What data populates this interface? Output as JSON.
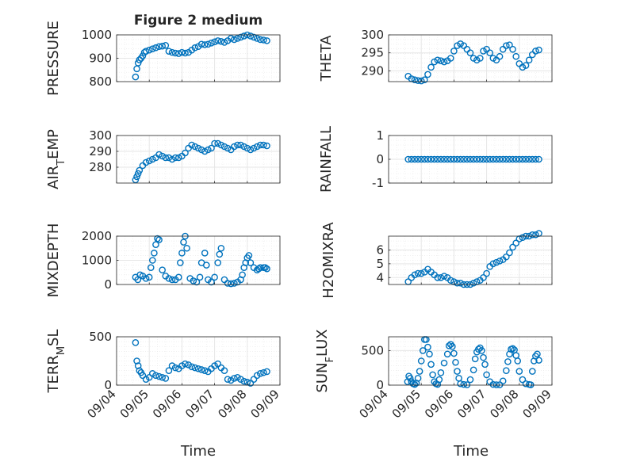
{
  "figure": {
    "title": "Figure 2 medium",
    "xlabel": "Time",
    "x_tick_labels": [
      "09/04",
      "09/05",
      "09/06",
      "09/07",
      "09/08",
      "09/09"
    ],
    "colors": {
      "marker": "#0072BD",
      "grid": "#e6e6e6",
      "axis": "#262626"
    }
  },
  "chart_data": [
    {
      "type": "scatter",
      "ylabel": "PRESSURE",
      "xlim": [
        0,
        5
      ],
      "ylim": [
        800,
        1000
      ],
      "yticks": [
        800,
        900,
        1000
      ],
      "x_tick_labels_shown": false,
      "grid": true,
      "x": [
        0.58,
        0.62,
        0.66,
        0.7,
        0.75,
        0.8,
        0.85,
        0.9,
        1.0,
        1.1,
        1.2,
        1.3,
        1.4,
        1.5,
        1.6,
        1.7,
        1.8,
        1.9,
        2.0,
        2.1,
        2.2,
        2.3,
        2.4,
        2.5,
        2.6,
        2.7,
        2.8,
        2.9,
        3.0,
        3.1,
        3.2,
        3.3,
        3.4,
        3.5,
        3.6,
        3.7,
        3.8,
        3.9,
        4.0,
        4.1,
        4.2,
        4.3,
        4.4,
        4.5,
        4.6
      ],
      "y": [
        820,
        855,
        880,
        893,
        900,
        910,
        925,
        930,
        935,
        940,
        945,
        950,
        952,
        955,
        930,
        925,
        922,
        920,
        925,
        922,
        925,
        935,
        945,
        950,
        960,
        958,
        960,
        965,
        970,
        975,
        972,
        968,
        975,
        985,
        980,
        985,
        990,
        995,
        1000,
        995,
        990,
        985,
        980,
        978,
        975
      ]
    },
    {
      "type": "scatter",
      "ylabel": "THETA",
      "xlim": [
        0,
        5
      ],
      "ylim": [
        287,
        300
      ],
      "yticks": [
        290,
        295,
        300
      ],
      "x_tick_labels_shown": false,
      "grid": true,
      "x": [
        0.6,
        0.7,
        0.8,
        0.9,
        1.0,
        1.1,
        1.2,
        1.3,
        1.4,
        1.5,
        1.6,
        1.7,
        1.8,
        1.9,
        2.0,
        2.1,
        2.2,
        2.3,
        2.4,
        2.5,
        2.6,
        2.7,
        2.8,
        2.9,
        3.0,
        3.1,
        3.2,
        3.3,
        3.4,
        3.5,
        3.6,
        3.7,
        3.8,
        3.9,
        4.0,
        4.1,
        4.2,
        4.3,
        4.4,
        4.5,
        4.6
      ],
      "y": [
        288.5,
        287.8,
        287.5,
        287.3,
        287.2,
        287.5,
        289,
        291,
        292.5,
        293,
        292.8,
        292.5,
        292.8,
        293.5,
        295.5,
        297,
        297.5,
        297,
        296,
        295,
        293.5,
        293,
        293.5,
        295.5,
        296,
        295,
        293.5,
        293,
        294,
        296,
        297,
        297.2,
        296,
        294,
        292,
        291,
        291.5,
        293,
        294.5,
        295.5,
        295.8
      ]
    },
    {
      "type": "scatter",
      "ylabel": "AIR_TEMP",
      "xlim": [
        0,
        5
      ],
      "ylim": [
        270,
        300
      ],
      "yticks": [
        280,
        290,
        300
      ],
      "x_tick_labels_shown": false,
      "grid": true,
      "x": [
        0.58,
        0.62,
        0.66,
        0.7,
        0.8,
        0.9,
        1.0,
        1.1,
        1.2,
        1.3,
        1.4,
        1.5,
        1.6,
        1.7,
        1.8,
        1.9,
        2.0,
        2.1,
        2.2,
        2.3,
        2.4,
        2.5,
        2.6,
        2.7,
        2.8,
        2.9,
        3.0,
        3.1,
        3.2,
        3.3,
        3.4,
        3.5,
        3.6,
        3.7,
        3.8,
        3.9,
        4.0,
        4.1,
        4.2,
        4.3,
        4.4,
        4.5,
        4.6
      ],
      "y": [
        272,
        274,
        276,
        278,
        281,
        283,
        284,
        285,
        286,
        288,
        287,
        286,
        286,
        285,
        286,
        286,
        287,
        289,
        292,
        294,
        293,
        292,
        291,
        290,
        291,
        292,
        295,
        295,
        294,
        293,
        292,
        291,
        293,
        294,
        294,
        293,
        292,
        291,
        292,
        293,
        294,
        294,
        293.5
      ]
    },
    {
      "type": "scatter",
      "ylabel": "RAINFALL",
      "xlim": [
        0,
        5
      ],
      "ylim": [
        -1,
        1
      ],
      "yticks": [
        -1,
        0,
        1
      ],
      "x_tick_labels_shown": false,
      "grid": true,
      "x": [
        0.6,
        0.7,
        0.8,
        0.9,
        1.0,
        1.1,
        1.2,
        1.3,
        1.4,
        1.5,
        1.6,
        1.7,
        1.8,
        1.9,
        2.0,
        2.1,
        2.2,
        2.3,
        2.4,
        2.5,
        2.6,
        2.7,
        2.8,
        2.9,
        3.0,
        3.1,
        3.2,
        3.3,
        3.4,
        3.5,
        3.6,
        3.7,
        3.8,
        3.9,
        4.0,
        4.1,
        4.2,
        4.3,
        4.4,
        4.5,
        4.6
      ],
      "y": [
        0,
        0,
        0,
        0,
        0,
        0,
        0,
        0,
        0,
        0,
        0,
        0,
        0,
        0,
        0,
        0,
        0,
        0,
        0,
        0,
        0,
        0,
        0,
        0,
        0,
        0,
        0,
        0,
        0,
        0,
        0,
        0,
        0,
        0,
        0,
        0,
        0,
        0,
        0,
        0,
        0
      ]
    },
    {
      "type": "scatter",
      "ylabel": "MIXDEPTH",
      "xlim": [
        0,
        5
      ],
      "ylim": [
        0,
        2000
      ],
      "yticks": [
        0,
        1000,
        2000
      ],
      "x_tick_labels_shown": false,
      "grid": true,
      "x": [
        0.58,
        0.65,
        0.72,
        0.8,
        0.9,
        1.0,
        1.05,
        1.1,
        1.15,
        1.2,
        1.25,
        1.3,
        1.4,
        1.5,
        1.6,
        1.7,
        1.8,
        1.9,
        1.95,
        2.0,
        2.05,
        2.1,
        2.15,
        2.25,
        2.35,
        2.45,
        2.55,
        2.6,
        2.7,
        2.75,
        2.8,
        2.9,
        3.0,
        3.1,
        3.15,
        3.2,
        3.3,
        3.4,
        3.5,
        3.6,
        3.7,
        3.8,
        3.85,
        3.9,
        3.95,
        4.0,
        4.05,
        4.1,
        4.2,
        4.3,
        4.35,
        4.4,
        4.5,
        4.55,
        4.6
      ],
      "y": [
        300,
        200,
        400,
        350,
        250,
        300,
        700,
        1000,
        1300,
        1650,
        1900,
        1850,
        600,
        350,
        250,
        200,
        200,
        300,
        900,
        1300,
        1750,
        2000,
        1500,
        250,
        150,
        100,
        300,
        900,
        1300,
        800,
        200,
        100,
        300,
        900,
        1250,
        1500,
        200,
        50,
        30,
        50,
        100,
        200,
        400,
        700,
        900,
        1100,
        1200,
        900,
        700,
        600,
        650,
        700,
        700,
        700,
        650
      ]
    },
    {
      "type": "scatter",
      "ylabel": "H2OMIXRA",
      "xlim": [
        0,
        5
      ],
      "ylim": [
        3.5,
        7
      ],
      "yticks": [
        4,
        5,
        6
      ],
      "x_tick_labels_shown": false,
      "grid": true,
      "x": [
        0.6,
        0.7,
        0.8,
        0.9,
        1.0,
        1.1,
        1.2,
        1.3,
        1.4,
        1.5,
        1.6,
        1.7,
        1.8,
        1.9,
        2.0,
        2.1,
        2.2,
        2.3,
        2.4,
        2.5,
        2.6,
        2.7,
        2.8,
        2.9,
        3.0,
        3.1,
        3.2,
        3.3,
        3.4,
        3.5,
        3.6,
        3.7,
        3.8,
        3.9,
        4.0,
        4.1,
        4.2,
        4.3,
        4.4,
        4.5,
        4.6
      ],
      "y": [
        3.7,
        4.0,
        4.2,
        4.3,
        4.3,
        4.4,
        4.6,
        4.4,
        4.2,
        4.0,
        4.0,
        4.1,
        4.0,
        3.8,
        3.7,
        3.6,
        3.6,
        3.5,
        3.5,
        3.5,
        3.6,
        3.7,
        3.8,
        4.0,
        4.3,
        4.8,
        5.0,
        5.1,
        5.2,
        5.3,
        5.5,
        5.8,
        6.2,
        6.5,
        6.8,
        6.9,
        7.0,
        7.0,
        7.1,
        7.1,
        7.2
      ]
    },
    {
      "type": "scatter",
      "ylabel": "TERR_MSL",
      "xlim": [
        0,
        5
      ],
      "ylim": [
        0,
        500
      ],
      "yticks": [
        0,
        500
      ],
      "x_tick_labels_shown": true,
      "grid": true,
      "x": [
        0.58,
        0.62,
        0.66,
        0.7,
        0.75,
        0.8,
        0.9,
        1.0,
        1.1,
        1.2,
        1.3,
        1.4,
        1.5,
        1.6,
        1.7,
        1.8,
        1.9,
        2.0,
        2.1,
        2.2,
        2.3,
        2.4,
        2.5,
        2.6,
        2.7,
        2.8,
        2.9,
        3.0,
        3.1,
        3.2,
        3.3,
        3.4,
        3.5,
        3.6,
        3.7,
        3.8,
        3.9,
        4.0,
        4.1,
        4.2,
        4.3,
        4.4,
        4.5,
        4.6
      ],
      "y": [
        440,
        250,
        200,
        150,
        130,
        100,
        60,
        80,
        120,
        100,
        90,
        80,
        70,
        150,
        200,
        180,
        170,
        200,
        220,
        210,
        190,
        180,
        170,
        160,
        150,
        140,
        170,
        200,
        220,
        180,
        150,
        60,
        50,
        70,
        80,
        60,
        40,
        30,
        20,
        60,
        100,
        120,
        130,
        140
      ]
    },
    {
      "type": "scatter",
      "ylabel": "SUN_FLUX",
      "xlim": [
        0,
        5
      ],
      "ylim": [
        0,
        700
      ],
      "yticks": [
        0,
        500
      ],
      "x_tick_labels_shown": true,
      "grid": true,
      "x": [
        0.58,
        0.62,
        0.66,
        0.7,
        0.75,
        0.8,
        0.85,
        0.9,
        0.95,
        1.0,
        1.05,
        1.1,
        1.15,
        1.2,
        1.25,
        1.3,
        1.35,
        1.4,
        1.45,
        1.5,
        1.55,
        1.6,
        1.7,
        1.8,
        1.85,
        1.9,
        1.95,
        2.0,
        2.05,
        2.1,
        2.15,
        2.2,
        2.3,
        2.4,
        2.5,
        2.6,
        2.65,
        2.7,
        2.75,
        2.8,
        2.85,
        2.9,
        2.95,
        3.0,
        3.1,
        3.2,
        3.3,
        3.4,
        3.5,
        3.6,
        3.65,
        3.7,
        3.75,
        3.8,
        3.85,
        3.9,
        3.95,
        4.0,
        4.1,
        4.2,
        4.3,
        4.35,
        4.4,
        4.45,
        4.5,
        4.55,
        4.6
      ],
      "y": [
        50,
        130,
        100,
        50,
        20,
        10,
        30,
        100,
        200,
        350,
        500,
        660,
        660,
        550,
        450,
        300,
        150,
        50,
        20,
        10,
        80,
        180,
        320,
        450,
        570,
        590,
        560,
        460,
        330,
        200,
        100,
        20,
        10,
        5,
        80,
        220,
        380,
        480,
        520,
        540,
        500,
        400,
        300,
        150,
        50,
        10,
        5,
        5,
        60,
        210,
        340,
        450,
        520,
        530,
        510,
        430,
        350,
        200,
        80,
        20,
        10,
        5,
        200,
        350,
        420,
        450,
        360
      ]
    }
  ]
}
